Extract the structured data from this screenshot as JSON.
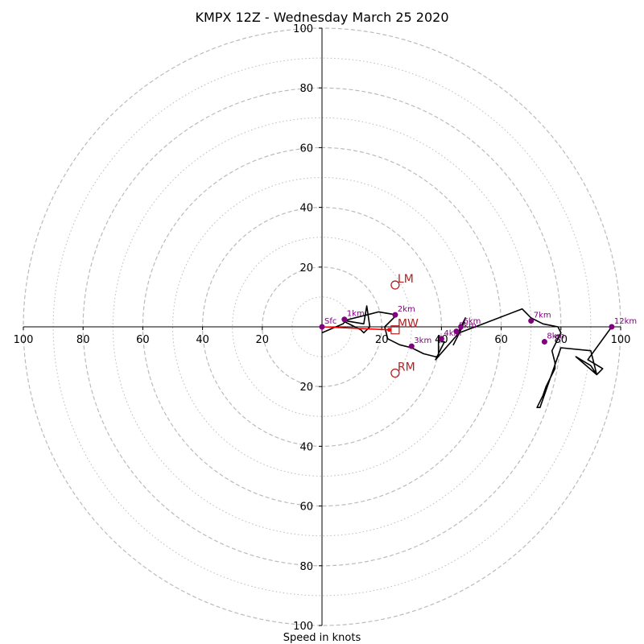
{
  "chart_data": {
    "type": "line",
    "title": "KMPX 12Z - Wednesday March 25 2020",
    "xlabel": "Speed in knots",
    "ylabel": "",
    "xlim": [
      -100,
      100
    ],
    "ylim": [
      -100,
      100
    ],
    "grid": {
      "major_rings": [
        20,
        40,
        60,
        80,
        100
      ],
      "minor_rings": [
        10,
        30,
        50,
        70,
        90
      ],
      "major_style": "dashed",
      "minor_style": "dotted",
      "color": "#bbbbbb"
    },
    "x_tick_labels": [
      "100",
      "80",
      "60",
      "40",
      "20",
      "20",
      "40",
      "60",
      "80",
      "100"
    ],
    "x_tick_values": [
      -100,
      -80,
      -60,
      -40,
      -20,
      20,
      40,
      60,
      80,
      100
    ],
    "y_tick_labels": [
      "100",
      "80",
      "60",
      "40",
      "20",
      "20",
      "40",
      "60",
      "80",
      "100"
    ],
    "y_tick_values": [
      100,
      80,
      60,
      40,
      20,
      -20,
      -40,
      -60,
      -80,
      -100
    ],
    "colors": {
      "hodograph": "#000000",
      "height_marker": "#800080",
      "mean_wind_vector": "#ff0000",
      "storm_motion": "#b22222"
    },
    "series": [
      {
        "points": [
          [
            0,
            -2
          ],
          [
            7,
            1
          ],
          [
            8,
            2
          ],
          [
            14,
            1
          ],
          [
            15,
            7
          ],
          [
            16,
            0
          ],
          [
            14,
            -2
          ],
          [
            13,
            -1
          ],
          [
            11,
            0
          ],
          [
            7,
            2
          ],
          [
            15,
            4
          ],
          [
            19,
            5
          ],
          [
            22,
            4.5
          ],
          [
            25,
            4
          ],
          [
            21,
            0
          ],
          [
            22,
            -4
          ],
          [
            26,
            -6
          ],
          [
            30,
            -7
          ],
          [
            34,
            -9
          ],
          [
            38,
            -10
          ],
          [
            39,
            -10
          ],
          [
            39,
            -3
          ],
          [
            40,
            -5
          ],
          [
            41,
            -5
          ],
          [
            38,
            -11
          ],
          [
            45,
            -3
          ],
          [
            47,
            1
          ],
          [
            48,
            3
          ],
          [
            47,
            0
          ],
          [
            44,
            -6
          ],
          [
            46,
            -2
          ],
          [
            54,
            1
          ],
          [
            67,
            6
          ],
          [
            70,
            3
          ],
          [
            74,
            1
          ],
          [
            79,
            0
          ],
          [
            80,
            -2
          ],
          [
            77,
            -8
          ],
          [
            78,
            -12
          ],
          [
            78,
            -14
          ],
          [
            75,
            -20
          ],
          [
            74,
            -23
          ],
          [
            72,
            -27
          ],
          [
            73,
            -27
          ],
          [
            80,
            -7
          ],
          [
            90,
            -8
          ],
          [
            92,
            -16
          ],
          [
            85,
            -10
          ],
          [
            90,
            -13
          ],
          [
            92,
            -16
          ],
          [
            94,
            -14
          ],
          [
            89,
            -11
          ],
          [
            97,
            0
          ]
        ]
      }
    ],
    "height_markers": [
      {
        "label": "Sfc",
        "u": 0,
        "v": 0
      },
      {
        "label": "1km",
        "u": 7.5,
        "v": 2.5
      },
      {
        "label": "2km",
        "u": 24.5,
        "v": 4
      },
      {
        "label": "3km",
        "u": 30,
        "v": -6.5
      },
      {
        "label": "4km",
        "u": 40,
        "v": -4
      },
      {
        "label": "5km",
        "u": 45,
        "v": -1.5
      },
      {
        "label": "6km",
        "u": 46.5,
        "v": 0
      },
      {
        "label": "7km",
        "u": 70,
        "v": 2
      },
      {
        "label": "8km",
        "u": 74.5,
        "v": -5
      },
      {
        "label": "12km",
        "u": 97,
        "v": 0
      }
    ],
    "mean_wind": {
      "label": "MW",
      "u": 24.5,
      "v": -1
    },
    "mean_wind_vector": {
      "from": [
        0,
        0
      ],
      "to": [
        22.5,
        -1
      ]
    },
    "storm_motions": [
      {
        "label": "LM",
        "u": 24.5,
        "v": 14
      },
      {
        "label": "RM",
        "u": 24.5,
        "v": -15.5
      }
    ]
  }
}
